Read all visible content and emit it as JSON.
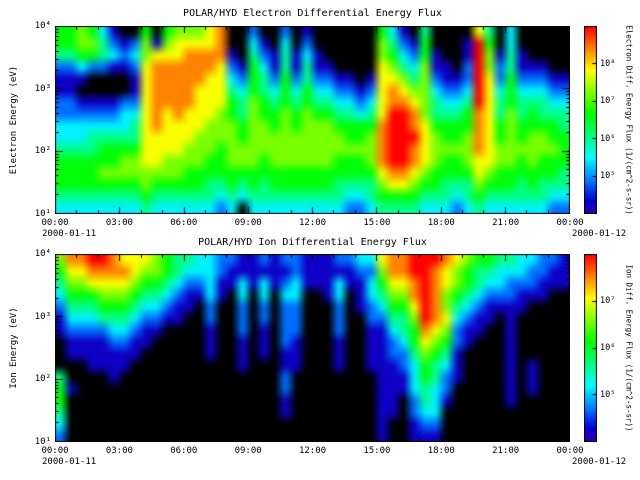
{
  "figure": {
    "background": "#ffffff",
    "plot_background": "#000000",
    "text_color": "#000000",
    "colormap": "rainbow (black=no flux, blue=low, green=mid, yellow/orange=high, red=max)"
  },
  "chart_data": [
    {
      "type": "heatmap",
      "title": "POLAR/HYD  Electron Differential Energy Flux",
      "ylabel": "Electron Energy (eV)",
      "y_ticks": [
        "10⁴",
        "10³",
        "10²",
        "10¹"
      ],
      "y_range_ev": [
        10,
        10000
      ],
      "y_scale": "log",
      "x_ticks": [
        "00:00",
        "03:00",
        "06:00",
        "09:00",
        "12:00",
        "15:00",
        "18:00",
        "21:00",
        "00:00"
      ],
      "date_left": "2000-01-11",
      "date_right": "2000-01-12",
      "colorbar": {
        "label": "Electron Diff. Energy Flux  (1/(cm^2-s-sr))",
        "ticks": [
          "10⁸",
          "10⁷",
          "10⁶",
          "10⁵"
        ]
      },
      "grid_encoding": "48 half-hour columns (00:00-24:00) x 16 log-energy rows (row 0 = 10^4 eV top, row 15 = 10^1 eV bottom); digits 0-9 = relative log10 flux, 0=black/no flux, 9=maximum (red)",
      "grid": [
        "556531005056667800200201000000531040000740300000",
        "556642126167777800310302000000642150001950300000",
        "445543236777888810421413100000653251001961410000",
        "223221127888888721531414110000764361102962411100",
        "111000017888887732542524221101776462112972522211",
        "110000017888877743543535332212787663223973533322",
        "221111227888877754654545443323788764334974544433",
        "222222337878777654655656554434799864445874645444",
        "333333347877776665665656665555899875555875655554",
        "333444447777766665666666666556899976556875656655",
        "444455557777666566666666666666899876666876666665",
        "555555667766665566656666665556899876556776656555",
        "555566666666555555555555555555788765555765555554",
        "555555556555554454545555554444677655444655545444",
        "444444445444444343444444444334555544434544444433",
        "333333334333333230333333333223444433323433333322"
      ]
    },
    {
      "type": "heatmap",
      "title": "POLAR/HYD  Ion Differential Energy Flux",
      "ylabel": "Ion Energy (eV)",
      "y_ticks": [
        "10⁴",
        "10³",
        "10²",
        "10¹"
      ],
      "y_range_ev": [
        10,
        10000
      ],
      "y_scale": "log",
      "x_ticks": [
        "00:00",
        "03:00",
        "06:00",
        "09:00",
        "12:00",
        "15:00",
        "18:00",
        "21:00",
        "00:00"
      ],
      "date_left": "2000-01-11",
      "date_right": "2000-01-12",
      "colorbar": {
        "label": "Ion Diff. Energy Flux  (1/(cm^2-s-sr))",
        "ticks": [
          "10⁷",
          "10⁶",
          "10⁵"
        ]
      },
      "grid_encoding": "48 half-hour columns (00:00-24:00) x 16 log-energy rows (row 0 = 10^4 eV top, row 15 = 10^1 eV bottom); digits 0-9 = relative log10 flux, 0=black/no flux, 9=maximum (red)",
      "grid": [
        "688998777654433221121221112233788999876554433221",
        "577888876654333211111121111122688998765443332211",
        "466777765543223113131231113113577898765433222111",
        "355566654432113103030330013013466898654322211100",
        "244455543321102002020220002012355798643211110000",
        "133344432211002002020220002002244698732110100000",
        "122223321100001002010220002001134587621100100000",
        "011112211000001001010210001001123576521000100000",
        "011111110000001001010110001001122465410000100000",
        "000111100000000001000110001001112354310000101000",
        "400001000000000000000200000000111354210000101000",
        "510000000000000000000200000000111343200000101000",
        "500000000000000000000100000000110243100000100000",
        "400000000000000000000100000000110233000000000000",
        "300000000000000000000000000000100122000000000000",
        "200000000000000000000000000000100111000000000000"
      ]
    }
  ]
}
